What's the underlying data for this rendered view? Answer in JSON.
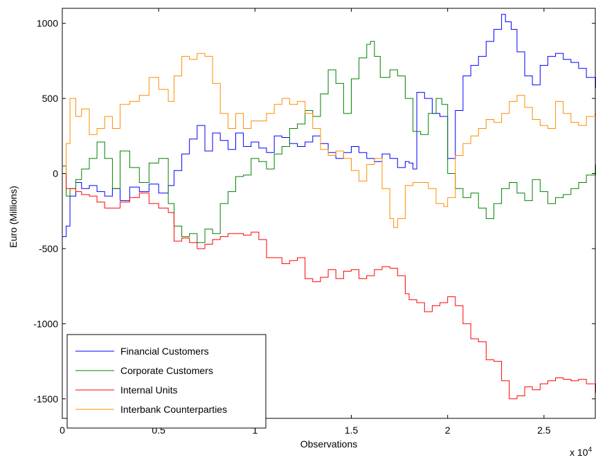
{
  "chart_data": {
    "type": "line",
    "title": "",
    "xlabel": "Observations",
    "ylabel": "Euro (Millions)",
    "x_exponent_label": "x 10",
    "x_exponent_superscript": "4",
    "xlim": [
      0,
      2.77
    ],
    "ylim": [
      -1630,
      1100
    ],
    "xticks": [
      0,
      0.5,
      1,
      1.5,
      2,
      2.5
    ],
    "xtick_labels": [
      "0",
      "0.5",
      "1",
      "1.5",
      "2",
      "2.5"
    ],
    "yticks": [
      -1500,
      -1000,
      -500,
      0,
      500,
      1000
    ],
    "ytick_labels": [
      "-1500",
      "-1000",
      "-500",
      "0",
      "500",
      "1000"
    ],
    "grid": false,
    "legend_position": "bottom-left",
    "series": [
      {
        "name": "Financial Customers",
        "color": "#0000ff",
        "x": [
          0,
          0.02,
          0.04,
          0.07,
          0.1,
          0.14,
          0.18,
          0.22,
          0.26,
          0.3,
          0.35,
          0.4,
          0.45,
          0.5,
          0.55,
          0.58,
          0.62,
          0.66,
          0.7,
          0.74,
          0.78,
          0.82,
          0.86,
          0.9,
          0.94,
          0.98,
          1.02,
          1.06,
          1.1,
          1.14,
          1.18,
          1.22,
          1.26,
          1.3,
          1.34,
          1.38,
          1.42,
          1.46,
          1.5,
          1.54,
          1.58,
          1.62,
          1.66,
          1.7,
          1.74,
          1.78,
          1.8,
          1.82,
          1.84,
          1.88,
          1.92,
          1.96,
          2.0,
          2.04,
          2.08,
          2.12,
          2.16,
          2.2,
          2.24,
          2.28,
          2.3,
          2.33,
          2.36,
          2.4,
          2.44,
          2.48,
          2.52,
          2.56,
          2.6,
          2.64,
          2.68,
          2.72,
          2.77
        ],
        "values": [
          -420,
          -350,
          -150,
          -60,
          -100,
          -80,
          -120,
          -150,
          -100,
          -180,
          -90,
          -120,
          -70,
          -130,
          -80,
          20,
          130,
          230,
          320,
          150,
          270,
          220,
          160,
          270,
          180,
          210,
          170,
          140,
          250,
          240,
          200,
          180,
          210,
          250,
          200,
          140,
          100,
          140,
          180,
          140,
          100,
          80,
          130,
          100,
          40,
          80,
          70,
          30,
          540,
          500,
          400,
          380,
          100,
          420,
          650,
          720,
          780,
          880,
          960,
          1060,
          1010,
          960,
          810,
          650,
          590,
          720,
          780,
          800,
          760,
          740,
          700,
          640,
          570
        ]
      },
      {
        "name": "Corporate Customers",
        "color": "#008000",
        "x": [
          0,
          0.02,
          0.04,
          0.07,
          0.1,
          0.14,
          0.18,
          0.22,
          0.26,
          0.3,
          0.35,
          0.4,
          0.45,
          0.5,
          0.55,
          0.58,
          0.62,
          0.66,
          0.7,
          0.74,
          0.78,
          0.82,
          0.86,
          0.9,
          0.94,
          0.98,
          1.02,
          1.06,
          1.1,
          1.14,
          1.18,
          1.22,
          1.26,
          1.3,
          1.34,
          1.38,
          1.42,
          1.46,
          1.5,
          1.54,
          1.58,
          1.6,
          1.62,
          1.65,
          1.7,
          1.74,
          1.78,
          1.82,
          1.86,
          1.9,
          1.94,
          1.97,
          2.0,
          2.04,
          2.08,
          2.12,
          2.16,
          2.2,
          2.24,
          2.28,
          2.32,
          2.36,
          2.4,
          2.44,
          2.48,
          2.52,
          2.56,
          2.6,
          2.64,
          2.68,
          2.72,
          2.77
        ],
        "values": [
          50,
          -150,
          -100,
          -40,
          30,
          100,
          210,
          100,
          -100,
          150,
          40,
          -60,
          70,
          100,
          -200,
          -350,
          -420,
          -400,
          -460,
          -370,
          -400,
          -200,
          -120,
          -20,
          -10,
          100,
          80,
          30,
          130,
          180,
          300,
          330,
          420,
          380,
          530,
          690,
          600,
          400,
          630,
          770,
          860,
          880,
          780,
          640,
          690,
          650,
          500,
          280,
          260,
          400,
          500,
          460,
          0,
          -100,
          -160,
          -130,
          -230,
          -300,
          -200,
          -100,
          -60,
          -130,
          -180,
          -40,
          -120,
          -200,
          -160,
          -140,
          -100,
          -60,
          -10,
          60
        ]
      },
      {
        "name": "Internal Units",
        "color": "#ff0000",
        "x": [
          0,
          0.02,
          0.04,
          0.07,
          0.1,
          0.14,
          0.18,
          0.22,
          0.26,
          0.3,
          0.35,
          0.4,
          0.45,
          0.5,
          0.55,
          0.58,
          0.62,
          0.66,
          0.7,
          0.74,
          0.78,
          0.82,
          0.86,
          0.9,
          0.94,
          0.98,
          1.02,
          1.06,
          1.1,
          1.14,
          1.18,
          1.22,
          1.26,
          1.3,
          1.34,
          1.38,
          1.42,
          1.46,
          1.5,
          1.54,
          1.58,
          1.62,
          1.66,
          1.7,
          1.74,
          1.78,
          1.8,
          1.84,
          1.88,
          1.92,
          1.96,
          2.0,
          2.04,
          2.08,
          2.12,
          2.16,
          2.2,
          2.24,
          2.28,
          2.32,
          2.36,
          2.4,
          2.44,
          2.48,
          2.52,
          2.56,
          2.6,
          2.64,
          2.68,
          2.72,
          2.77
        ],
        "values": [
          0,
          -100,
          -100,
          -120,
          -140,
          -150,
          -190,
          -230,
          -230,
          -190,
          -160,
          -130,
          -200,
          -230,
          -260,
          -450,
          -430,
          -460,
          -500,
          -470,
          -440,
          -420,
          -400,
          -400,
          -410,
          -390,
          -440,
          -560,
          -560,
          -600,
          -580,
          -560,
          -700,
          -720,
          -690,
          -640,
          -700,
          -650,
          -640,
          -700,
          -680,
          -640,
          -620,
          -630,
          -680,
          -800,
          -840,
          -860,
          -920,
          -880,
          -860,
          -820,
          -880,
          -1000,
          -1100,
          -1120,
          -1240,
          -1250,
          -1380,
          -1500,
          -1480,
          -1420,
          -1440,
          -1400,
          -1380,
          -1360,
          -1370,
          -1380,
          -1370,
          -1400,
          -1460
        ]
      },
      {
        "name": "Interbank Counterparties",
        "color": "#ff8c00",
        "x": [
          0,
          0.02,
          0.04,
          0.07,
          0.1,
          0.14,
          0.18,
          0.22,
          0.26,
          0.3,
          0.35,
          0.4,
          0.45,
          0.5,
          0.55,
          0.58,
          0.62,
          0.66,
          0.7,
          0.74,
          0.78,
          0.82,
          0.86,
          0.9,
          0.94,
          0.98,
          1.02,
          1.06,
          1.1,
          1.14,
          1.18,
          1.22,
          1.26,
          1.3,
          1.34,
          1.38,
          1.42,
          1.46,
          1.5,
          1.54,
          1.58,
          1.62,
          1.66,
          1.7,
          1.72,
          1.74,
          1.78,
          1.82,
          1.86,
          1.9,
          1.94,
          1.98,
          2.0,
          2.04,
          2.08,
          2.12,
          2.16,
          2.2,
          2.24,
          2.28,
          2.32,
          2.36,
          2.4,
          2.44,
          2.48,
          2.52,
          2.56,
          2.6,
          2.64,
          2.68,
          2.72,
          2.77
        ],
        "values": [
          0,
          200,
          500,
          380,
          430,
          260,
          300,
          380,
          300,
          460,
          480,
          520,
          640,
          560,
          480,
          650,
          780,
          760,
          800,
          780,
          600,
          400,
          300,
          400,
          300,
          350,
          350,
          400,
          460,
          500,
          460,
          480,
          400,
          300,
          160,
          120,
          150,
          100,
          20,
          -50,
          60,
          100,
          -100,
          -300,
          -360,
          -300,
          -80,
          -60,
          -60,
          -100,
          -200,
          -220,
          -160,
          120,
          200,
          250,
          300,
          360,
          340,
          400,
          480,
          520,
          440,
          360,
          320,
          300,
          480,
          400,
          340,
          320,
          380,
          400
        ]
      }
    ]
  }
}
